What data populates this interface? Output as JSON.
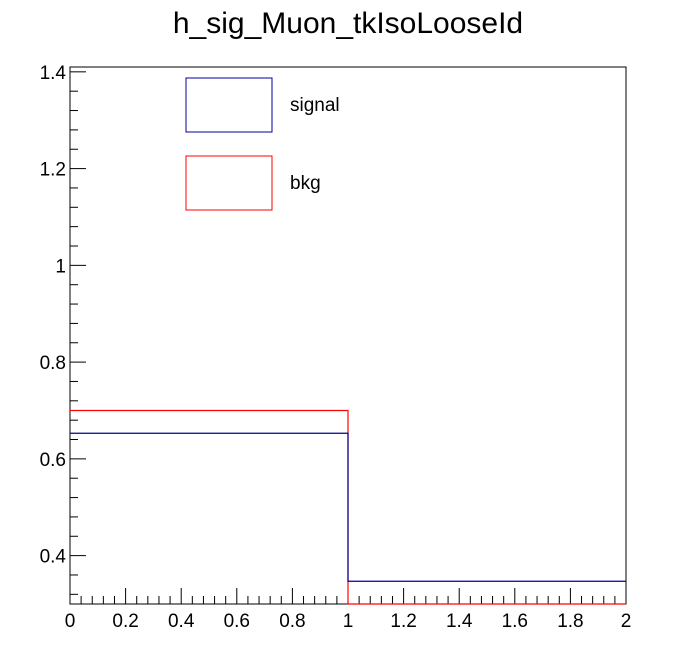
{
  "chart_data": {
    "type": "histogram",
    "title": "h_sig_Muon_tkIsoLooseId",
    "xlabel": "",
    "ylabel": "",
    "xlim": [
      0,
      2
    ],
    "ylim": [
      0.3,
      1.41
    ],
    "x_ticks": [
      "0",
      "0.2",
      "0.4",
      "0.6",
      "0.8",
      "1",
      "1.2",
      "1.4",
      "1.6",
      "1.8",
      "2"
    ],
    "y_ticks": [
      "0.4",
      "0.6",
      "0.8",
      "1",
      "1.2",
      "1.4"
    ],
    "bin_edges": [
      0,
      1,
      2
    ],
    "series": [
      {
        "name": "signal",
        "color": "#000099",
        "values": [
          0.653,
          0.347
        ]
      },
      {
        "name": "bkg",
        "color": "#ff0000",
        "values": [
          0.7,
          0.3
        ]
      }
    ],
    "legend": {
      "position": "top-left",
      "entries": [
        {
          "label": "signal",
          "color": "#000099"
        },
        {
          "label": "bkg",
          "color": "#ff0000"
        }
      ]
    },
    "grid": false
  }
}
